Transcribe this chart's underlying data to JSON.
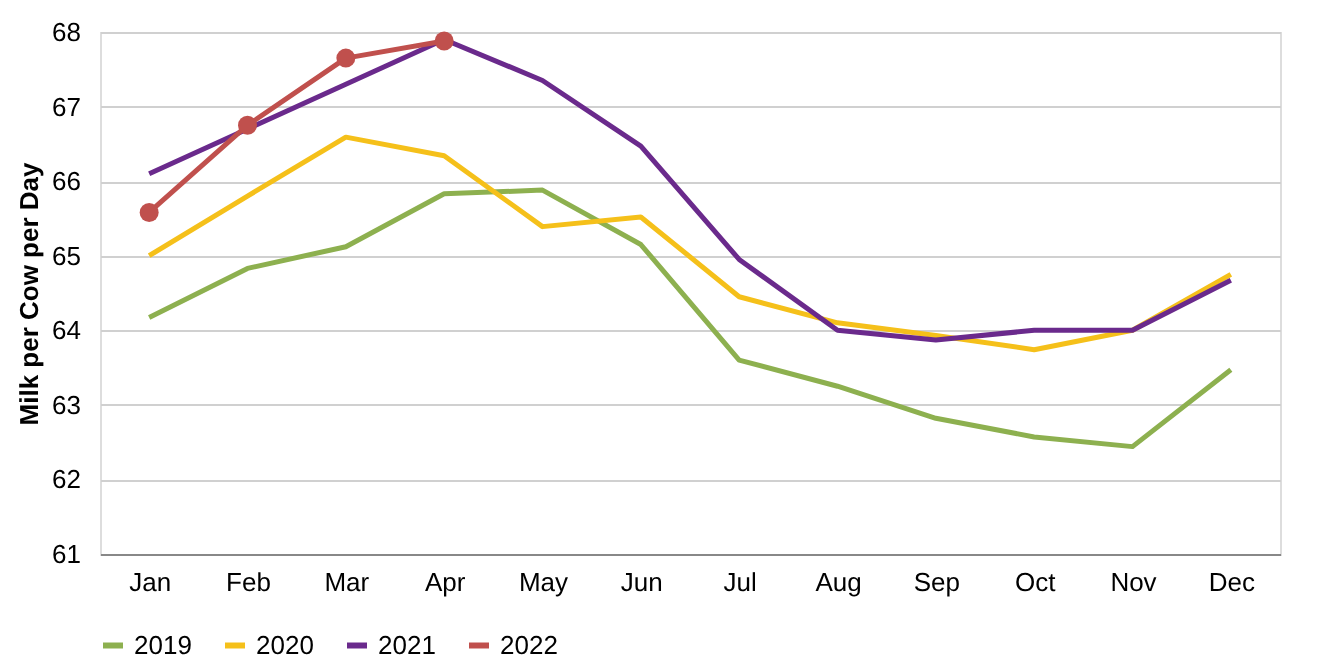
{
  "chart_data": {
    "type": "line",
    "ylabel": "Milk per Cow per Day",
    "categories": [
      "Jan",
      "Feb",
      "Mar",
      "Apr",
      "May",
      "Jun",
      "Jul",
      "Aug",
      "Sep",
      "Oct",
      "Nov",
      "Dec"
    ],
    "series": [
      {
        "name": "2019",
        "color": "#8db04f",
        "values": [
          64.17,
          64.83,
          65.12,
          65.83,
          65.88,
          65.15,
          63.6,
          63.25,
          62.82,
          62.57,
          62.44,
          63.47
        ]
      },
      {
        "name": "2020",
        "color": "#f5c01a",
        "values": [
          65.0,
          65.8,
          66.59,
          66.34,
          65.39,
          65.52,
          64.45,
          64.1,
          63.93,
          63.74,
          64.0,
          64.75
        ]
      },
      {
        "name": "2021",
        "color": "#6a2a8c",
        "values": [
          66.1,
          66.7,
          67.3,
          67.9,
          67.35,
          66.47,
          64.95,
          64.0,
          63.87,
          64.0,
          64.0,
          64.67
        ]
      },
      {
        "name": "2022",
        "color": "#c0504d",
        "marker": "circle",
        "values": [
          65.58,
          66.75,
          67.65,
          67.88,
          null,
          null,
          null,
          null,
          null,
          null,
          null,
          null
        ]
      }
    ],
    "ylim": [
      61,
      68
    ],
    "yticks": [
      61,
      62,
      63,
      64,
      65,
      66,
      67,
      68
    ],
    "grid": "y",
    "legend": "bottom"
  }
}
